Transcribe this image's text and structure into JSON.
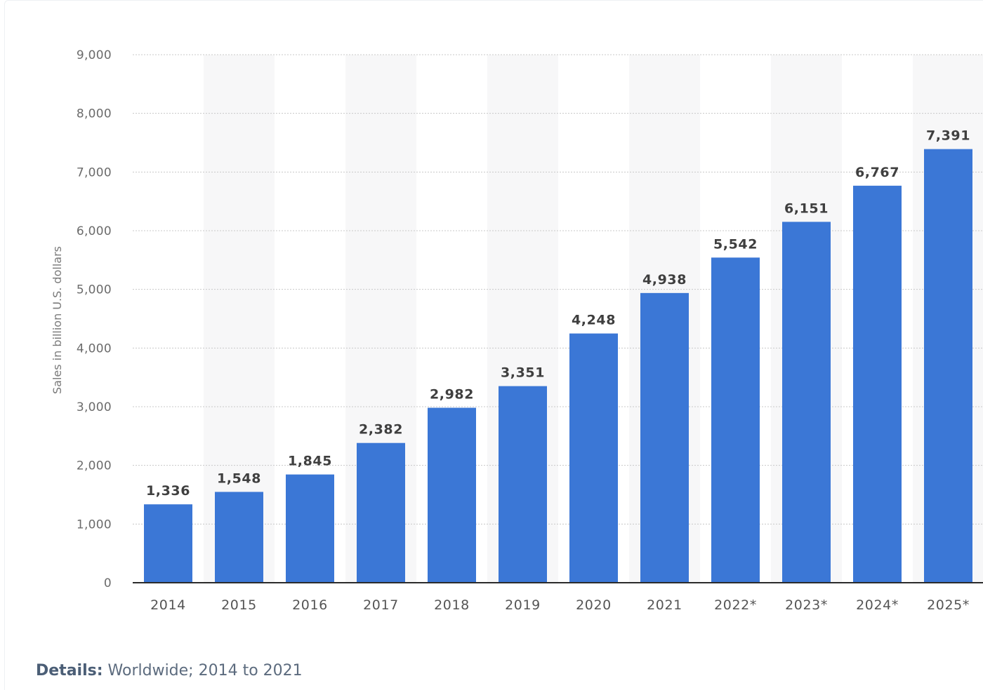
{
  "chart_data": {
    "type": "bar",
    "categories": [
      "2014",
      "2015",
      "2016",
      "2017",
      "2018",
      "2019",
      "2020",
      "2021",
      "2022*",
      "2023*",
      "2024*",
      "2025*"
    ],
    "values": [
      1336,
      1548,
      1845,
      2382,
      2982,
      3351,
      4248,
      4938,
      5542,
      6151,
      6767,
      7391
    ],
    "value_labels": [
      "1,336",
      "1,548",
      "1,845",
      "2,382",
      "2,982",
      "3,351",
      "4,248",
      "4,938",
      "5,542",
      "6,151",
      "6,767",
      "7,391"
    ],
    "ylabel": "Sales in billion U.S. dollars",
    "xlabel": "",
    "ylim": [
      0,
      9000
    ],
    "yticks": [
      0,
      1000,
      2000,
      3000,
      4000,
      5000,
      6000,
      7000,
      8000,
      9000
    ],
    "ytick_labels": [
      "0",
      "1,000",
      "2,000",
      "3,000",
      "4,000",
      "5,000",
      "6,000",
      "7,000",
      "8,000",
      "9,000"
    ],
    "grid": true,
    "bar_color": "#3b77d6",
    "band_color": "#f7f7f8",
    "grid_color": "#c8c8c8"
  },
  "details": {
    "label": "Details:",
    "text": "Worldwide; 2014 to 2021"
  }
}
